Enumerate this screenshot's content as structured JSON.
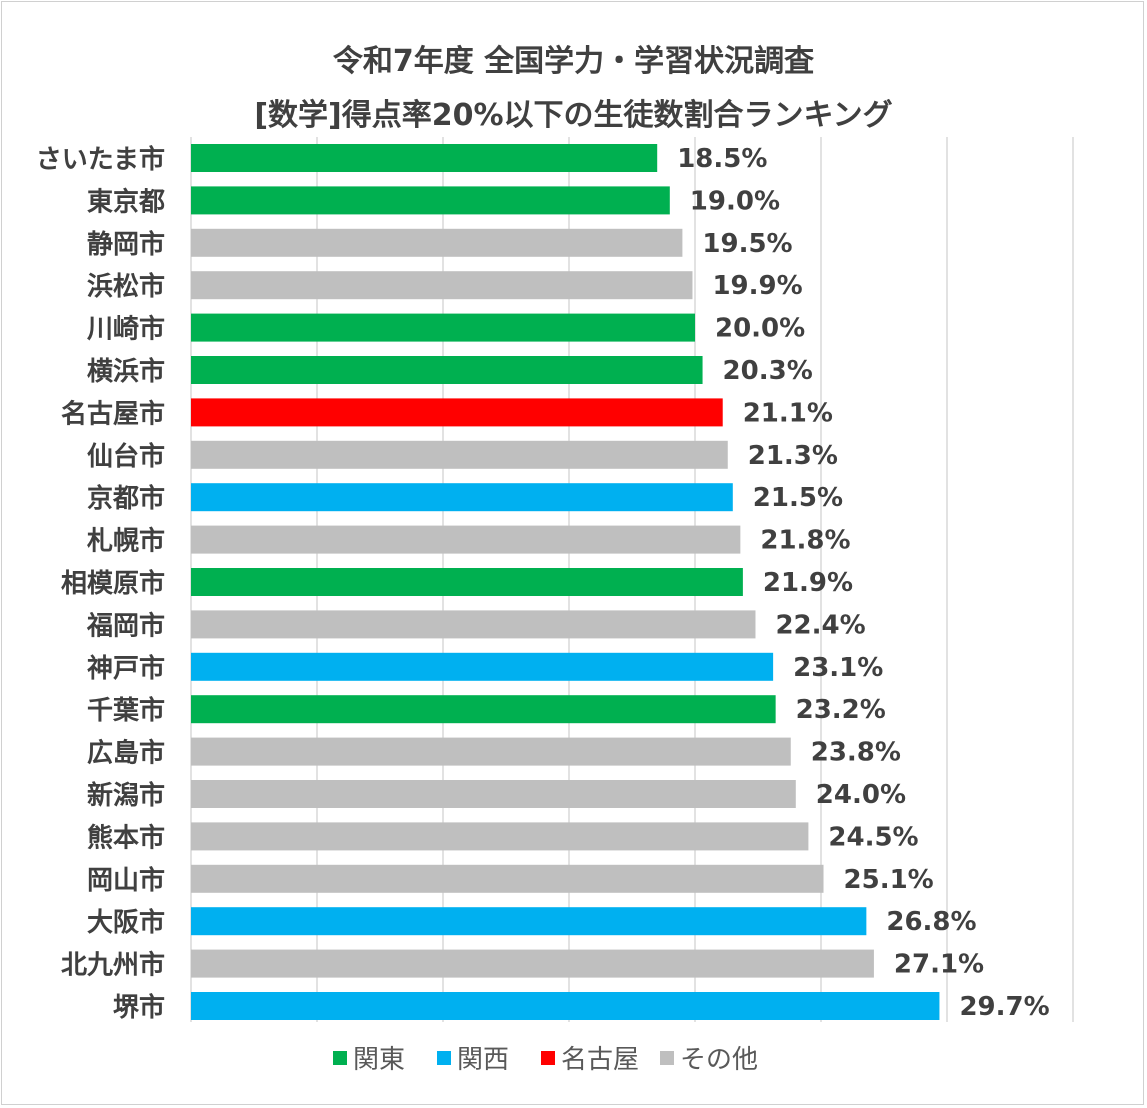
{
  "chart_data": {
    "type": "bar",
    "orientation": "horizontal",
    "title": "令和7年度 全国学力・学習状況調査",
    "subtitle": "[数学]得点率20%以下の生徒数割合ランキング",
    "xlim": [
      0,
      35
    ],
    "grid": true,
    "legend_position": "bottom",
    "groups": [
      {
        "name": "関東",
        "color": "#00B050"
      },
      {
        "name": "関西",
        "color": "#00B0F0"
      },
      {
        "name": "名古屋",
        "color": "#FF0000"
      },
      {
        "name": "その他",
        "color": "#BFBFBF"
      }
    ],
    "items": [
      {
        "city": "さいたま市",
        "value": 18.5,
        "label": "18.5%",
        "group": 0
      },
      {
        "city": "東京都",
        "value": 19.0,
        "label": "19.0%",
        "group": 0
      },
      {
        "city": "静岡市",
        "value": 19.5,
        "label": "19.5%",
        "group": 3
      },
      {
        "city": "浜松市",
        "value": 19.9,
        "label": "19.9%",
        "group": 3
      },
      {
        "city": "川崎市",
        "value": 20.0,
        "label": "20.0%",
        "group": 0
      },
      {
        "city": "横浜市",
        "value": 20.3,
        "label": "20.3%",
        "group": 0
      },
      {
        "city": "名古屋市",
        "value": 21.1,
        "label": "21.1%",
        "group": 2
      },
      {
        "city": "仙台市",
        "value": 21.3,
        "label": "21.3%",
        "group": 3
      },
      {
        "city": "京都市",
        "value": 21.5,
        "label": "21.5%",
        "group": 1
      },
      {
        "city": "札幌市",
        "value": 21.8,
        "label": "21.8%",
        "group": 3
      },
      {
        "city": "相模原市",
        "value": 21.9,
        "label": "21.9%",
        "group": 0
      },
      {
        "city": "福岡市",
        "value": 22.4,
        "label": "22.4%",
        "group": 3
      },
      {
        "city": "神戸市",
        "value": 23.1,
        "label": "23.1%",
        "group": 1
      },
      {
        "city": "千葉市",
        "value": 23.2,
        "label": "23.2%",
        "group": 0
      },
      {
        "city": "広島市",
        "value": 23.8,
        "label": "23.8%",
        "group": 3
      },
      {
        "city": "新潟市",
        "value": 24.0,
        "label": "24.0%",
        "group": 3
      },
      {
        "city": "熊本市",
        "value": 24.5,
        "label": "24.5%",
        "group": 3
      },
      {
        "city": "岡山市",
        "value": 25.1,
        "label": "25.1%",
        "group": 3
      },
      {
        "city": "大阪市",
        "value": 26.8,
        "label": "26.8%",
        "group": 1
      },
      {
        "city": "北九州市",
        "value": 27.1,
        "label": "27.1%",
        "group": 3
      },
      {
        "city": "堺市",
        "value": 29.7,
        "label": "29.7%",
        "group": 1
      }
    ]
  }
}
